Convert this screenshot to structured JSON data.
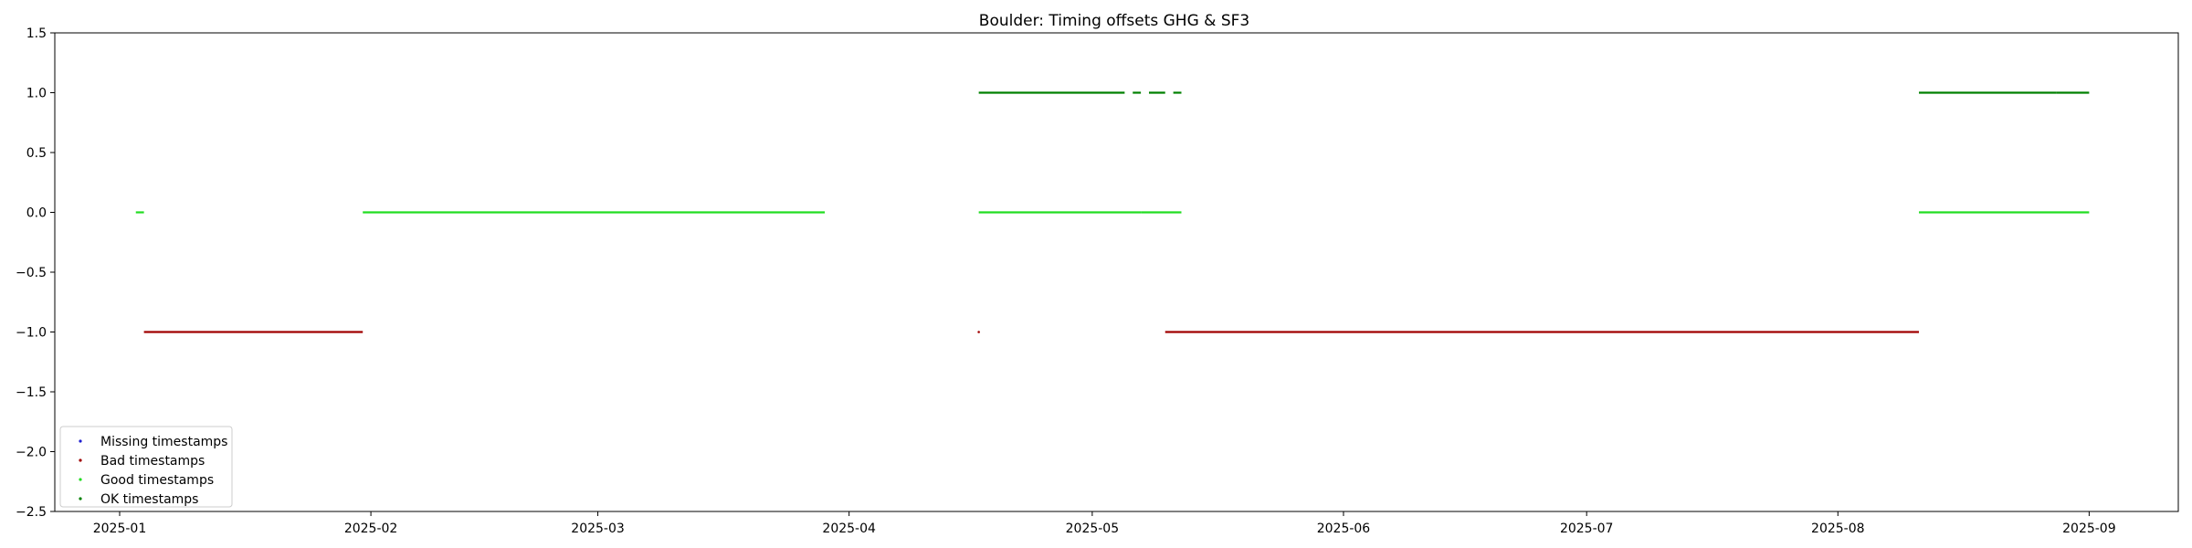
{
  "chart_data": {
    "type": "scatter",
    "title": "Boulder: Timing offsets GHG & SF3",
    "xlabel": "",
    "ylabel": "",
    "xlim": [
      "2024-12-24",
      "2025-09-12"
    ],
    "ylim": [
      -2.5,
      1.5
    ],
    "x_ticks": [
      "2025-01",
      "2025-02",
      "2025-03",
      "2025-04",
      "2025-05",
      "2025-06",
      "2025-07",
      "2025-08",
      "2025-09"
    ],
    "y_ticks": [
      "1.5",
      "1.0",
      "0.5",
      "0.0",
      "−0.5",
      "−1.0",
      "−1.5",
      "−2.0",
      "−2.5"
    ],
    "grid": false,
    "legend_position": "lower-left",
    "series": [
      {
        "name": "Missing timestamps",
        "color": "#1f1fd0",
        "y": -2,
        "ranges": []
      },
      {
        "name": "Bad timestamps",
        "color": "#a00000",
        "y": -1,
        "ranges": [
          [
            "2025-01-04",
            "2025-01-31"
          ],
          [
            "2025-04-17",
            "2025-04-17"
          ],
          [
            "2025-05-10",
            "2025-08-11"
          ]
        ]
      },
      {
        "name": "Good timestamps",
        "color": "#22dd22",
        "y": 0,
        "ranges": [
          [
            "2025-01-03",
            "2025-01-04"
          ],
          [
            "2025-01-31",
            "2025-03-29"
          ],
          [
            "2025-04-17",
            "2025-05-07"
          ],
          [
            "2025-05-07",
            "2025-05-12"
          ],
          [
            "2025-08-11",
            "2025-09-01"
          ]
        ]
      },
      {
        "name": "OK timestamps",
        "color": "#008000",
        "y": 1,
        "ranges": [
          [
            "2025-04-17",
            "2025-05-05"
          ],
          [
            "2025-05-06",
            "2025-05-07"
          ],
          [
            "2025-05-08",
            "2025-05-10"
          ],
          [
            "2025-05-11",
            "2025-05-12"
          ],
          [
            "2025-08-11",
            "2025-08-28"
          ],
          [
            "2025-08-28",
            "2025-09-01"
          ]
        ]
      }
    ]
  }
}
